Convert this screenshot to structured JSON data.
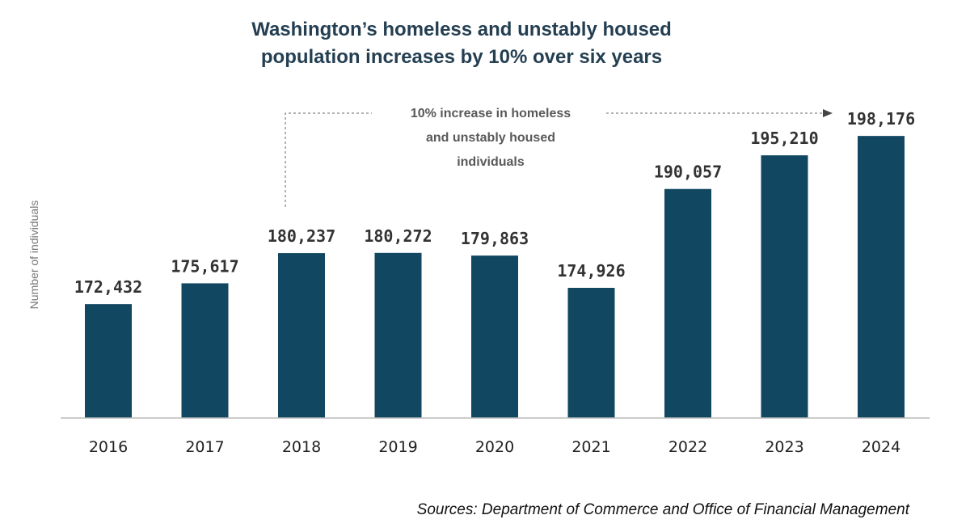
{
  "chart_data": {
    "type": "bar",
    "title_lines": [
      "Washington’s homeless and unstably housed",
      "population increases by 10% over six years"
    ],
    "xlabel": "",
    "ylabel": "Number of individuals",
    "categories": [
      "2016",
      "2017",
      "2018",
      "2019",
      "2020",
      "2021",
      "2022",
      "2023",
      "2024"
    ],
    "values": [
      172432,
      175617,
      180237,
      180272,
      179863,
      174926,
      190057,
      195210,
      198176
    ],
    "value_labels": [
      "172,432",
      "175,617",
      "180,237",
      "180,272",
      "179,863",
      "174,926",
      "190,057",
      "195,210",
      "198,176"
    ],
    "ylim": [
      155000,
      200000
    ],
    "grid": false,
    "bar_color": "#114761",
    "annotation": {
      "lines": [
        "10% increase in homeless",
        "and unstably housed",
        "individuals"
      ],
      "from": "2018",
      "to": "2024"
    },
    "source": "Sources: Department of Commerce and Office of Financial Management"
  }
}
